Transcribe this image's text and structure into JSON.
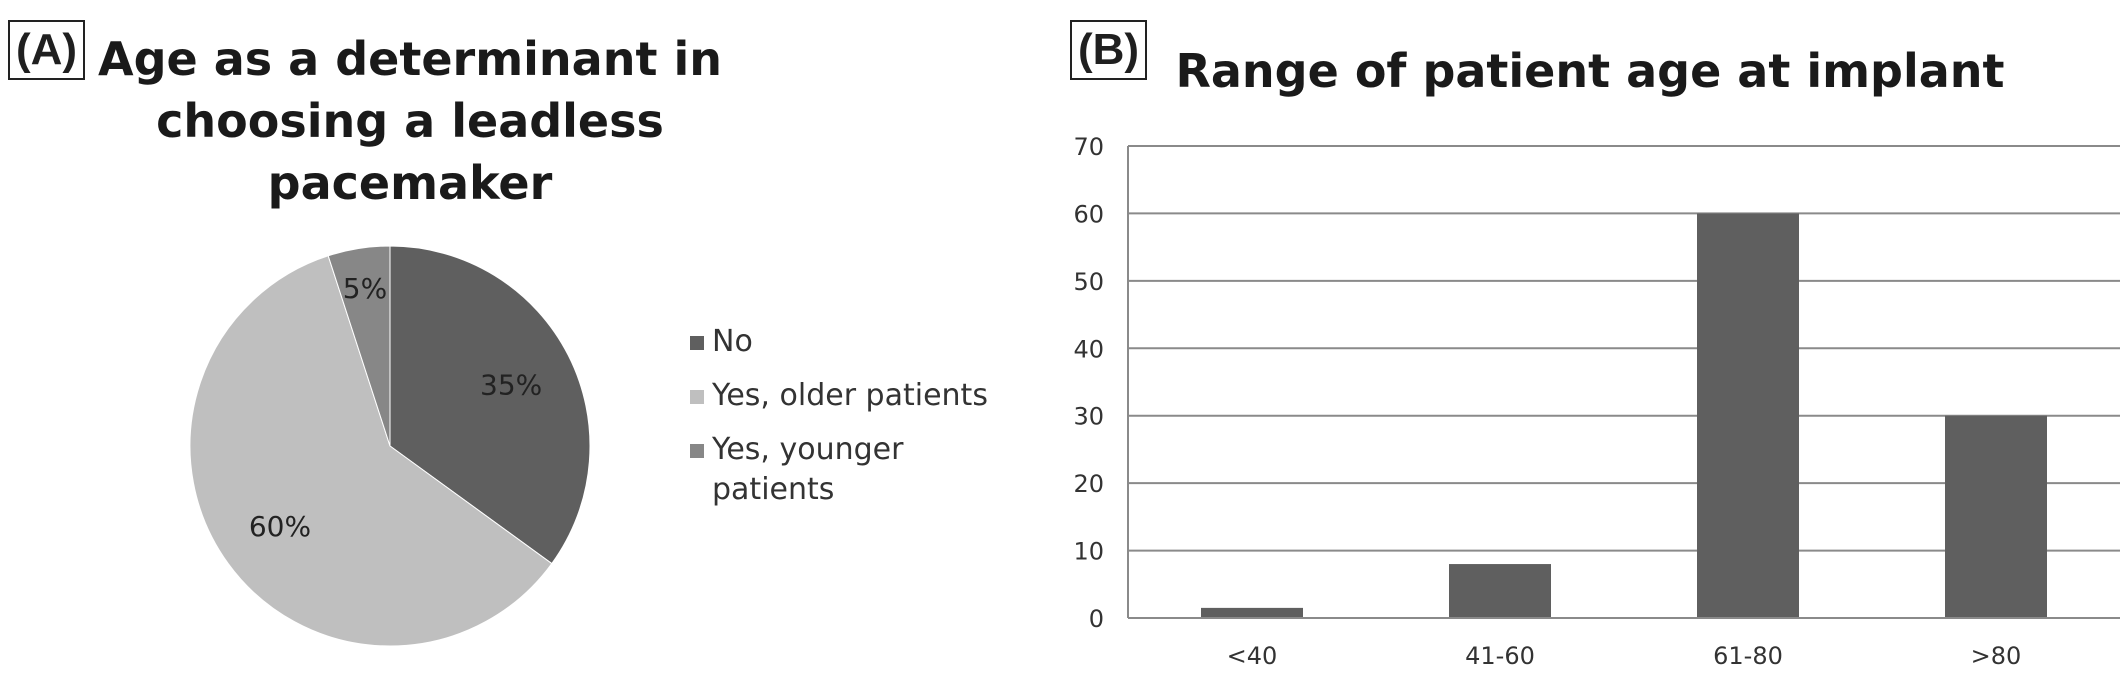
{
  "chart_data": [
    {
      "panel_label": "(A)",
      "type": "pie",
      "title": "Age as a determinant in choosing a leadless pacemaker",
      "legend_position": "right",
      "slices": [
        {
          "label": "No",
          "value": 35,
          "value_label": "35%",
          "color": "#5f5f5f"
        },
        {
          "label": "Yes, older patients",
          "value": 60,
          "value_label": "60%",
          "color": "#bfbfbf"
        },
        {
          "label": "Yes, younger patients",
          "value": 5,
          "value_label": "5%",
          "color": "#878787"
        }
      ]
    },
    {
      "panel_label": "(B)",
      "type": "bar",
      "title": "Range of patient age at implant",
      "categories": [
        "<40",
        "41-60",
        "61-80",
        ">80"
      ],
      "values": [
        1.5,
        8,
        60,
        30
      ],
      "ylim": [
        0,
        70
      ],
      "yticks": [
        "0",
        "10",
        "20",
        "30",
        "40",
        "50",
        "60",
        "70"
      ],
      "grid": true,
      "bar_color": "#5f5f5f"
    }
  ]
}
